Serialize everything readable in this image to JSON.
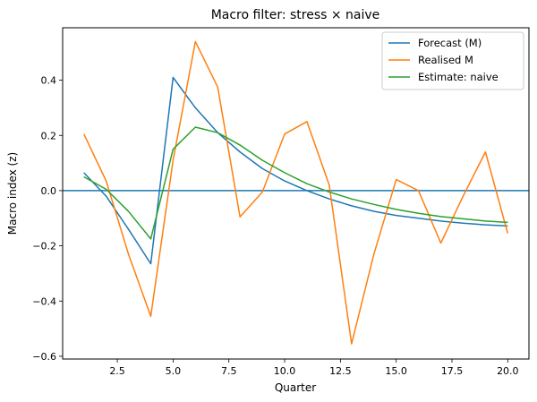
{
  "chart_data": {
    "type": "line",
    "title": "Macro filter: stress × naive",
    "xlabel": "Quarter",
    "ylabel": "Macro index (z)",
    "xlim": [
      0.05,
      20.95
    ],
    "ylim": [
      -0.61,
      0.59
    ],
    "xticks": [
      2.5,
      5.0,
      7.5,
      10.0,
      12.5,
      15.0,
      17.5,
      20.0
    ],
    "xtick_labels": [
      "2.5",
      "5.0",
      "7.5",
      "10.0",
      "12.5",
      "15.0",
      "17.5",
      "20.0"
    ],
    "yticks": [
      -0.6,
      -0.4,
      -0.2,
      0.0,
      0.2,
      0.4
    ],
    "ytick_labels": [
      "−0.6",
      "−0.4",
      "−0.2",
      "0.0",
      "0.2",
      "0.4"
    ],
    "grid": false,
    "legend_position": "top-right",
    "hline": {
      "y": 0.0,
      "color": "#1f77b4"
    },
    "x": [
      1,
      2,
      3,
      4,
      5,
      6,
      7,
      8,
      9,
      10,
      11,
      12,
      13,
      14,
      15,
      16,
      17,
      18,
      19,
      20
    ],
    "series": [
      {
        "name": "Forecast (M)",
        "color": "#1f77b4",
        "values": [
          0.065,
          -0.02,
          -0.14,
          -0.265,
          0.41,
          0.3,
          0.21,
          0.14,
          0.08,
          0.035,
          0.0,
          -0.03,
          -0.055,
          -0.075,
          -0.09,
          -0.1,
          -0.11,
          -0.118,
          -0.124,
          -0.128
        ]
      },
      {
        "name": "Realised M",
        "color": "#ff7f0e",
        "values": [
          0.205,
          0.035,
          -0.23,
          -0.455,
          0.11,
          0.54,
          0.375,
          -0.095,
          -0.005,
          0.205,
          0.25,
          0.02,
          -0.555,
          -0.23,
          0.04,
          0.0,
          -0.19,
          -0.02,
          0.14,
          -0.155
        ]
      },
      {
        "name": "Estimate: naive",
        "color": "#2ca02c",
        "values": [
          0.05,
          0.005,
          -0.075,
          -0.175,
          0.15,
          0.23,
          0.21,
          0.165,
          0.11,
          0.065,
          0.025,
          -0.005,
          -0.03,
          -0.05,
          -0.068,
          -0.082,
          -0.094,
          -0.102,
          -0.11,
          -0.115
        ]
      }
    ]
  }
}
